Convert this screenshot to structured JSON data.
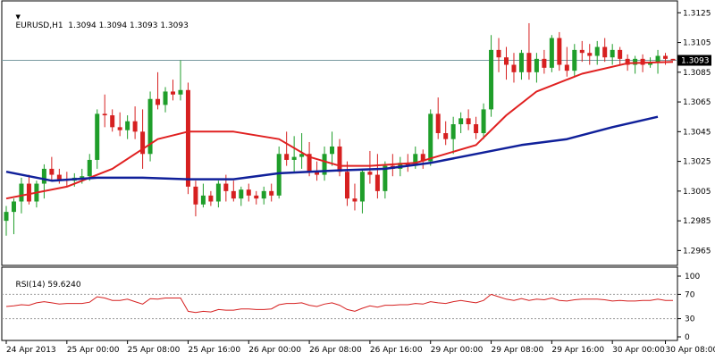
{
  "header": {
    "symbol_line": "EURUSD,H1  1.3094 1.3094 1.3093 1.3093",
    "rsi_title": "RSI(14) 59.6240"
  },
  "colors": {
    "bull": "#1f9e2a",
    "bear": "#d62020",
    "ma_fast": "#e02020",
    "ma_slow": "#10209a",
    "rsi": "#d62020",
    "last_price_line": "#7a9aa0",
    "frame": "#000000",
    "last_price_box": "#000000"
  },
  "chart_data": [
    {
      "type": "candlestick",
      "title": "EURUSD,H1",
      "ylim": [
        1.2955,
        1.3133
      ],
      "y_ticks": [
        "1.3125",
        "1.3105",
        "1.3085",
        "1.3065",
        "1.3045",
        "1.3025",
        "1.3005",
        "1.2985",
        "1.2965"
      ],
      "last_price_label": "1.3093",
      "last_price": 1.3093,
      "x_labels": [
        {
          "bar": 0,
          "text": "24 Apr 2013"
        },
        {
          "bar": 8,
          "text": "25 Apr 00:00"
        },
        {
          "bar": 16,
          "text": "25 Apr 08:00"
        },
        {
          "bar": 24,
          "text": "25 Apr 16:00"
        },
        {
          "bar": 32,
          "text": "26 Apr 00:00"
        },
        {
          "bar": 40,
          "text": "26 Apr 08:00"
        },
        {
          "bar": 48,
          "text": "26 Apr 16:00"
        },
        {
          "bar": 56,
          "text": "29 Apr 00:00"
        },
        {
          "bar": 64,
          "text": "29 Apr 08:00"
        },
        {
          "bar": 72,
          "text": "29 Apr 16:00"
        },
        {
          "bar": 80,
          "text": "30 Apr 00:00"
        },
        {
          "bar": 87,
          "text": "30 Apr 08:00"
        }
      ],
      "candles": [
        [
          1.2985,
          1.2995,
          1.2975,
          1.2991
        ],
        [
          1.2991,
          1.3,
          1.2976,
          1.2998
        ],
        [
          1.2998,
          1.3014,
          1.299,
          1.301
        ],
        [
          1.301,
          1.3016,
          1.2996,
          1.2998
        ],
        [
          1.2998,
          1.3012,
          1.2994,
          1.301
        ],
        [
          1.301,
          1.3023,
          1.3,
          1.302
        ],
        [
          1.302,
          1.3028,
          1.3012,
          1.3016
        ],
        [
          1.3016,
          1.302,
          1.301,
          1.3013
        ],
        [
          1.3013,
          1.3018,
          1.3008,
          1.3012
        ],
        [
          1.3012,
          1.3017,
          1.3008,
          1.3014
        ],
        [
          1.3014,
          1.302,
          1.301,
          1.3015
        ],
        [
          1.3015,
          1.303,
          1.3012,
          1.3026
        ],
        [
          1.3026,
          1.306,
          1.302,
          1.3057
        ],
        [
          1.3057,
          1.307,
          1.3048,
          1.3056
        ],
        [
          1.3056,
          1.306,
          1.3045,
          1.3048
        ],
        [
          1.3048,
          1.3058,
          1.3042,
          1.3046
        ],
        [
          1.3046,
          1.3056,
          1.304,
          1.3052
        ],
        [
          1.3052,
          1.3062,
          1.304,
          1.3045
        ],
        [
          1.3045,
          1.306,
          1.302,
          1.303
        ],
        [
          1.303,
          1.3072,
          1.3025,
          1.3067
        ],
        [
          1.3067,
          1.3085,
          1.306,
          1.3063
        ],
        [
          1.3063,
          1.3075,
          1.3058,
          1.3072
        ],
        [
          1.3072,
          1.308,
          1.3066,
          1.307
        ],
        [
          1.307,
          1.3093,
          1.3066,
          1.3073
        ],
        [
          1.3073,
          1.3078,
          1.3003,
          1.3008
        ],
        [
          1.3008,
          1.3012,
          1.2988,
          1.2996
        ],
        [
          1.2996,
          1.301,
          1.2994,
          1.3002
        ],
        [
          1.3002,
          1.3005,
          1.2995,
          1.2998
        ],
        [
          1.2998,
          1.3012,
          1.2994,
          1.301
        ],
        [
          1.301,
          1.3016,
          1.2998,
          1.3005
        ],
        [
          1.3005,
          1.3012,
          1.2998,
          1.3
        ],
        [
          1.3,
          1.3008,
          1.2995,
          1.3006
        ],
        [
          1.3006,
          1.301,
          1.2998,
          1.3002
        ],
        [
          1.3002,
          1.3005,
          1.2996,
          1.3
        ],
        [
          1.3,
          1.3008,
          1.2996,
          1.3005
        ],
        [
          1.3005,
          1.301,
          1.2998,
          1.3002
        ],
        [
          1.3002,
          1.3035,
          1.3,
          1.303
        ],
        [
          1.303,
          1.3045,
          1.3022,
          1.3026
        ],
        [
          1.3026,
          1.3042,
          1.3018,
          1.3028
        ],
        [
          1.3028,
          1.3044,
          1.302,
          1.303
        ],
        [
          1.303,
          1.3038,
          1.3015,
          1.3018
        ],
        [
          1.3018,
          1.3025,
          1.3012,
          1.3016
        ],
        [
          1.3016,
          1.3035,
          1.3012,
          1.303
        ],
        [
          1.303,
          1.3045,
          1.3022,
          1.3035
        ],
        [
          1.3035,
          1.304,
          1.3015,
          1.3018
        ],
        [
          1.3018,
          1.3025,
          1.2995,
          1.3
        ],
        [
          1.3,
          1.301,
          1.2992,
          1.2998
        ],
        [
          1.2998,
          1.302,
          1.299,
          1.3018
        ],
        [
          1.3018,
          1.3032,
          1.301,
          1.3016
        ],
        [
          1.3016,
          1.303,
          1.3,
          1.3005
        ],
        [
          1.3005,
          1.3025,
          1.3,
          1.3022
        ],
        [
          1.3022,
          1.303,
          1.3015,
          1.302
        ],
        [
          1.302,
          1.3028,
          1.3015,
          1.3024
        ],
        [
          1.3024,
          1.303,
          1.3018,
          1.3022
        ],
        [
          1.3022,
          1.3035,
          1.302,
          1.303
        ],
        [
          1.303,
          1.3033,
          1.302,
          1.3025
        ],
        [
          1.3025,
          1.306,
          1.3022,
          1.3057
        ],
        [
          1.3057,
          1.3068,
          1.304,
          1.3044
        ],
        [
          1.3044,
          1.3052,
          1.3036,
          1.304
        ],
        [
          1.304,
          1.3055,
          1.303,
          1.305
        ],
        [
          1.305,
          1.3058,
          1.3044,
          1.3054
        ],
        [
          1.3054,
          1.306,
          1.3046,
          1.305
        ],
        [
          1.305,
          1.3055,
          1.304,
          1.3044
        ],
        [
          1.3044,
          1.3064,
          1.304,
          1.306
        ],
        [
          1.306,
          1.311,
          1.3055,
          1.31
        ],
        [
          1.31,
          1.3108,
          1.3085,
          1.3095
        ],
        [
          1.3095,
          1.3102,
          1.308,
          1.309
        ],
        [
          1.309,
          1.3098,
          1.3078,
          1.3085
        ],
        [
          1.3085,
          1.31,
          1.308,
          1.3098
        ],
        [
          1.3098,
          1.3118,
          1.308,
          1.3085
        ],
        [
          1.3085,
          1.3098,
          1.3078,
          1.3094
        ],
        [
          1.3094,
          1.31,
          1.3084,
          1.3088
        ],
        [
          1.3088,
          1.311,
          1.3085,
          1.3108
        ],
        [
          1.3108,
          1.3112,
          1.3086,
          1.309
        ],
        [
          1.309,
          1.3102,
          1.3082,
          1.3086
        ],
        [
          1.3086,
          1.3104,
          1.3082,
          1.31
        ],
        [
          1.31,
          1.3106,
          1.3092,
          1.3098
        ],
        [
          1.3098,
          1.3104,
          1.309,
          1.3096
        ],
        [
          1.3096,
          1.3106,
          1.309,
          1.3102
        ],
        [
          1.3102,
          1.3108,
          1.3092,
          1.3095
        ],
        [
          1.3095,
          1.3104,
          1.309,
          1.31
        ],
        [
          1.31,
          1.3102,
          1.309,
          1.3094
        ],
        [
          1.3094,
          1.3097,
          1.3086,
          1.309
        ],
        [
          1.309,
          1.3096,
          1.3084,
          1.3094
        ],
        [
          1.3094,
          1.3097,
          1.3085,
          1.309
        ],
        [
          1.309,
          1.3095,
          1.3088,
          1.3092
        ],
        [
          1.3092,
          1.31,
          1.3084,
          1.3096
        ],
        [
          1.3096,
          1.3098,
          1.309,
          1.3094
        ],
        [
          1.3094,
          1.3094,
          1.3093,
          1.3093
        ]
      ],
      "series": [
        {
          "kind": "ma_fast",
          "points": [
            [
              0,
              1.3
            ],
            [
              8,
              1.3008
            ],
            [
              14,
              1.302
            ],
            [
              20,
              1.304
            ],
            [
              24,
              1.3045
            ],
            [
              30,
              1.3045
            ],
            [
              36,
              1.304
            ],
            [
              40,
              1.3028
            ],
            [
              44,
              1.3022
            ],
            [
              48,
              1.3022
            ],
            [
              54,
              1.3024
            ],
            [
              58,
              1.303
            ],
            [
              62,
              1.3036
            ],
            [
              66,
              1.3056
            ],
            [
              70,
              1.3072
            ],
            [
              76,
              1.3084
            ],
            [
              82,
              1.3091
            ],
            [
              88,
              1.3092
            ]
          ]
        },
        {
          "kind": "ma_slow",
          "points": [
            [
              0,
              1.3018
            ],
            [
              6,
              1.3012
            ],
            [
              12,
              1.3014
            ],
            [
              18,
              1.3014
            ],
            [
              24,
              1.3013
            ],
            [
              30,
              1.3013
            ],
            [
              36,
              1.3017
            ],
            [
              44,
              1.3019
            ],
            [
              50,
              1.302
            ],
            [
              56,
              1.3024
            ],
            [
              62,
              1.303
            ],
            [
              68,
              1.3036
            ],
            [
              74,
              1.304
            ],
            [
              80,
              1.3048
            ],
            [
              86,
              1.3055
            ]
          ]
        }
      ]
    },
    {
      "type": "line",
      "title": "RSI(14) 59.6240",
      "ylim": [
        0,
        100
      ],
      "y_ticks": [
        "100",
        "70",
        "30",
        "0"
      ],
      "levels": [
        70,
        30
      ],
      "series": [
        {
          "kind": "rsi",
          "values": [
            50,
            51,
            53,
            52,
            56,
            58,
            56,
            54,
            55,
            55,
            55,
            57,
            66,
            64,
            60,
            60,
            62,
            58,
            54,
            63,
            62,
            64,
            64,
            64,
            42,
            40,
            42,
            41,
            45,
            44,
            44,
            46,
            46,
            45,
            45,
            46,
            53,
            55,
            55,
            56,
            52,
            50,
            54,
            56,
            52,
            45,
            42,
            47,
            51,
            49,
            52,
            52,
            53,
            53,
            55,
            54,
            58,
            56,
            55,
            58,
            60,
            58,
            56,
            60,
            70,
            66,
            62,
            60,
            63,
            60,
            62,
            61,
            64,
            60,
            59,
            61,
            62,
            62,
            62,
            61,
            59,
            60,
            59,
            59,
            60,
            60,
            62,
            60,
            60
          ]
        }
      ]
    }
  ]
}
